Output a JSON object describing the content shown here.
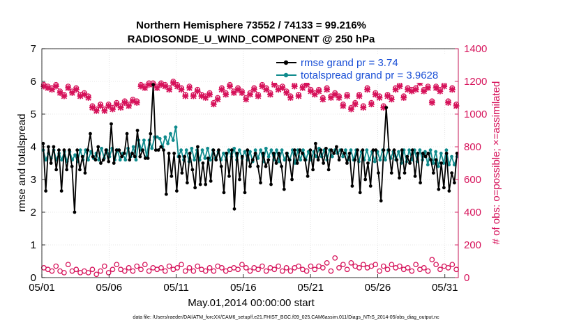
{
  "chart_data": {
    "type": "line",
    "title": "Northern Hemisphere 73552 / 74133 = 99.216%",
    "subtitle": "RADIOSONDE_U_WIND_COMPONENT @ 250 hPa",
    "xlabel": "May.01,2014 00:00:00 start",
    "ylabel_left": "rmse and totalspread",
    "ylabel_right": "# of obs: o=possible; ×=assimilated",
    "footnote": "data file: /Users/raeder/DAI/ATM_forcXX/CAM6_setup/f.e21.FHIST_BGC.f09_025.CAM6assim.011/Diags_NTrS_2014-05/obs_diag_output.nc",
    "xlim": [
      1,
      32
    ],
    "ylim_left": [
      0,
      7
    ],
    "ylim_right": [
      0,
      1400
    ],
    "xticks": [
      1,
      6,
      11,
      16,
      21,
      26,
      31
    ],
    "xtick_labels": [
      "05/01",
      "05/06",
      "05/11",
      "05/16",
      "05/21",
      "05/26",
      "05/31"
    ],
    "yticks_left": [
      0,
      1,
      2,
      3,
      4,
      5,
      6,
      7
    ],
    "yticks_left_labels": [
      "0",
      "1",
      "2",
      "3",
      "4",
      "5",
      "6",
      "7"
    ],
    "yticks_right": [
      0,
      200,
      400,
      600,
      800,
      1000,
      1200,
      1400
    ],
    "yticks_right_labels": [
      "0",
      "200",
      "400",
      "600",
      "800",
      "1000",
      "1200",
      "1400"
    ],
    "colors": {
      "rmse": "#000000",
      "spread": "#0f8b8d",
      "obs": "#d6125a",
      "legend_text": "#1a4fd6"
    },
    "legend": [
      {
        "name": "rmse grand pr = 3.74",
        "color": "#000000"
      },
      {
        "name": "totalspread grand pr = 3.9628",
        "color": "#0f8b8d"
      }
    ],
    "series": [
      {
        "name": "rmse",
        "axis": "left",
        "values": [
          4.1,
          2.65,
          4.0,
          3.5,
          4.0,
          3.3,
          3.9,
          2.65,
          3.9,
          3.3,
          3.9,
          3.4,
          2.0,
          3.9,
          3.3,
          3.7,
          3.2,
          3.9,
          4.4,
          3.7,
          3.6,
          4.0,
          3.5,
          3.6,
          3.9,
          3.55,
          4.7,
          3.5,
          3.9,
          3.9,
          3.7,
          3.8,
          4.4,
          3.6,
          3.8,
          3.7,
          4.5,
          3.7,
          3.9,
          3.65,
          3.65,
          4.4,
          5.9,
          3.9,
          3.9,
          4.0,
          3.9,
          2.55,
          3.8,
          3.1,
          3.8,
          2.65,
          3.7,
          3.2,
          3.7,
          2.9,
          3.8,
          3.3,
          2.75,
          4.0,
          2.85,
          3.5,
          2.85,
          3.65,
          2.95,
          3.9,
          3.6,
          3.9,
          3.4,
          2.6,
          3.8,
          3.1,
          3.9,
          2.1,
          3.8,
          3.0,
          3.7,
          2.6,
          3.9,
          3.4,
          3.6,
          3.8,
          3.4,
          2.9,
          3.8,
          3.4,
          3.6,
          2.85,
          3.8,
          3.5,
          3.8,
          3.4,
          2.7,
          3.8,
          3.6,
          3.0,
          3.9,
          3.5,
          3.9,
          3.8,
          3.6,
          3.1,
          3.9,
          3.3,
          4.1,
          3.6,
          3.9,
          3.5,
          3.95,
          3.3,
          3.9,
          3.8,
          4.0,
          3.6,
          3.9,
          3.8,
          3.5,
          3.8,
          2.8,
          3.6,
          3.9,
          2.6,
          3.9,
          3.0,
          3.5,
          2.8,
          3.9,
          3.9,
          3.2,
          2.35,
          3.9,
          5.2,
          3.9,
          3.2,
          3.9,
          3.6,
          3.05,
          3.9,
          3.2,
          3.7,
          3.5,
          3.9,
          3.1,
          3.8,
          2.9,
          3.8,
          3.7,
          3.8,
          3.6,
          3.2,
          3.6,
          2.7,
          3.5,
          2.75,
          3.8,
          2.65,
          3.2,
          2.9,
          3.8
        ]
      },
      {
        "name": "totalspread",
        "axis": "left",
        "values": [
          3.9,
          3.6,
          3.8,
          3.65,
          3.9,
          3.6,
          3.8,
          3.6,
          3.85,
          3.55,
          3.85,
          3.6,
          3.75,
          3.55,
          3.9,
          3.6,
          3.9,
          3.6,
          3.85,
          3.65,
          3.8,
          3.6,
          3.95,
          3.65,
          3.9,
          3.7,
          3.95,
          3.6,
          3.9,
          3.6,
          3.8,
          3.6,
          3.95,
          3.7,
          4.0,
          3.6,
          4.2,
          3.9,
          4.2,
          3.7,
          4.2,
          3.95,
          4.3,
          4.3,
          4.25,
          4.0,
          4.3,
          4.1,
          4.4,
          4.2,
          4.6,
          3.7,
          3.9,
          3.6,
          3.9,
          3.55,
          3.95,
          3.6,
          3.9,
          3.6,
          3.9,
          3.65,
          3.95,
          3.6,
          3.9,
          3.65,
          3.85,
          3.6,
          3.8,
          3.6,
          3.9,
          3.7,
          3.95,
          3.6,
          3.9,
          3.65,
          3.85,
          3.6,
          3.85,
          3.55,
          3.9,
          3.65,
          3.9,
          3.55,
          3.95,
          3.7,
          3.9,
          3.6,
          3.9,
          3.55,
          3.9,
          3.6,
          3.8,
          3.6,
          3.9,
          3.5,
          3.9,
          3.6,
          3.9,
          3.6,
          3.85,
          3.6,
          3.85,
          3.7,
          3.95,
          3.7,
          3.9,
          3.6,
          3.9,
          3.7,
          3.9,
          3.8,
          3.9,
          3.7,
          3.9,
          3.6,
          3.9,
          3.6,
          3.9,
          3.55,
          3.85,
          3.6,
          3.9,
          3.6,
          3.85,
          3.55,
          3.85,
          3.6,
          3.9,
          3.6,
          3.9,
          3.65,
          3.85,
          3.6,
          3.85,
          3.5,
          3.9,
          3.55,
          3.9,
          3.6,
          3.9,
          3.55,
          3.9,
          3.6,
          3.85,
          3.45,
          3.9,
          3.5,
          3.85,
          3.4,
          3.8,
          3.5,
          3.9,
          3.45,
          3.7,
          3.45,
          3.7
        ]
      },
      {
        "name": "obs possible",
        "axis": "right",
        "marker": "o",
        "values": [
          1180,
          1170,
          1160,
          1180,
          1140,
          1120,
          1170,
          1140,
          1160,
          1120,
          1130,
          1110,
          1050,
          1030,
          1060,
          1030,
          1060,
          1040,
          1070,
          1050,
          1080,
          1060,
          1090,
          1080,
          1180,
          1170,
          1190,
          1190,
          1170,
          1190,
          1180,
          1160,
          1200,
          1180,
          1160,
          1120,
          1170,
          1120,
          1150,
          1120,
          1110,
          1130,
          1070,
          1100,
          1160,
          1130,
          1180,
          1140,
          1160,
          1140,
          1100,
          1130,
          1160,
          1120,
          1180,
          1160,
          1130,
          1190,
          1160,
          1170,
          1140,
          1110,
          1180,
          1120,
          1170,
          1190,
          1150,
          1130,
          1150,
          1100,
          1160,
          1110,
          1130,
          1110,
          1060,
          1120,
          1040,
          1070,
          1120,
          1050,
          1160,
          1070,
          1130,
          1110,
          1050,
          1120,
          1100,
          1160,
          1180,
          1110,
          1160,
          1150,
          1160,
          1200,
          1150,
          1170,
          1080,
          1170,
          1150,
          1180,
          1080,
          1160,
          1060
        ]
      },
      {
        "name": "obs assimilated",
        "axis": "right",
        "marker": "x",
        "values": [
          1170,
          1160,
          1150,
          1170,
          1130,
          1110,
          1160,
          1130,
          1150,
          1110,
          1120,
          1100,
          1040,
          1020,
          1050,
          1020,
          1050,
          1030,
          1060,
          1040,
          1070,
          1050,
          1080,
          1070,
          1170,
          1160,
          1180,
          1180,
          1160,
          1180,
          1170,
          1150,
          1190,
          1170,
          1150,
          1110,
          1160,
          1110,
          1140,
          1110,
          1100,
          1120,
          1060,
          1090,
          1150,
          1120,
          1170,
          1130,
          1150,
          1130,
          1090,
          1120,
          1150,
          1110,
          1170,
          1150,
          1120,
          1180,
          1150,
          1160,
          1130,
          1100,
          1170,
          1110,
          1160,
          1180,
          1140,
          1120,
          1140,
          1090,
          1150,
          1100,
          1120,
          1100,
          1050,
          1110,
          1030,
          1060,
          1110,
          1040,
          1150,
          1060,
          1120,
          1100,
          1040,
          1110,
          1090,
          1150,
          1170,
          1100,
          1150,
          1140,
          1150,
          1190,
          1140,
          1160,
          1070,
          1160,
          1140,
          1170,
          1070,
          1150,
          1050
        ]
      },
      {
        "name": "obs possible (low)",
        "axis": "right",
        "marker": "o",
        "values": [
          60,
          50,
          40,
          70,
          40,
          30,
          80,
          40,
          50,
          30,
          40,
          30,
          50,
          20,
          40,
          70,
          30,
          50,
          80,
          50,
          40,
          60,
          40,
          70,
          50,
          80,
          40,
          60,
          50,
          60,
          40,
          70,
          50,
          60,
          80,
          40,
          60,
          40,
          70,
          50,
          40,
          60,
          40,
          70,
          60,
          40,
          50,
          60,
          50,
          80,
          60,
          40,
          60,
          50,
          70,
          40,
          60,
          50,
          70,
          40,
          60,
          40,
          60,
          70,
          50,
          40,
          70,
          50,
          70,
          60,
          90,
          40,
          120,
          60,
          80,
          50,
          90,
          70,
          60,
          80,
          60,
          70,
          80,
          40,
          70,
          50,
          80,
          60,
          70,
          50,
          60,
          40,
          80,
          50,
          60,
          40,
          110,
          80,
          50,
          70,
          60,
          80,
          50
        ]
      }
    ]
  }
}
